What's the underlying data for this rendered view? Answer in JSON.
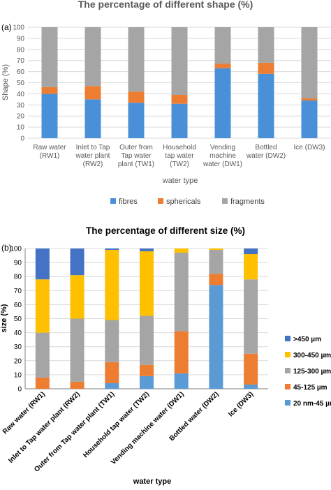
{
  "chart_data": [
    {
      "panel_label": "(a)",
      "type": "bar",
      "stacked": true,
      "title": "The percentage of different shape (%)",
      "xlabel": "water type",
      "ylabel": "Shape (%)",
      "ylim": [
        0,
        100
      ],
      "yticks": [
        0,
        10,
        20,
        30,
        40,
        50,
        60,
        70,
        80,
        90,
        100
      ],
      "grid": true,
      "legend_position": "bottom",
      "categories": [
        [
          "Raw water",
          "(RW1)"
        ],
        [
          "Inlet to Tap",
          "water plant",
          "(RW2)"
        ],
        [
          "Outer from",
          "Tap water",
          "plant (TW1)"
        ],
        [
          "Household",
          "tap water",
          "(TW2)"
        ],
        [
          "Vending",
          "machine",
          "water (DW1)"
        ],
        [
          "Bottled",
          "water (DW2)"
        ],
        [
          "Ice (DW3)"
        ]
      ],
      "series": [
        {
          "name": "fibres",
          "color": "#4a90d9",
          "values": [
            40,
            35,
            32,
            31,
            63,
            58,
            34
          ]
        },
        {
          "name": "sphericals",
          "color": "#ed7d31",
          "values": [
            6,
            12,
            10,
            8,
            4,
            10,
            2
          ]
        },
        {
          "name": "fragments",
          "color": "#a5a5a5",
          "values": [
            54,
            53,
            58,
            61,
            33,
            32,
            64
          ]
        }
      ]
    },
    {
      "panel_label": "(b)",
      "type": "bar",
      "stacked": true,
      "title": "The percentage of different size (%)",
      "xlabel": "water type",
      "ylabel": "size (%)",
      "ylim": [
        0,
        100
      ],
      "yticks": [
        0,
        10,
        20,
        30,
        40,
        50,
        60,
        70,
        80,
        90,
        100
      ],
      "grid": true,
      "legend_position": "right",
      "categories": [
        "Raw water (RW1)",
        "Inlet to Tap water plant (RW2)",
        "Outer from Tap water plant (TW1)",
        "Household tap water (TW2)",
        "Vending machine water (DW1)",
        "Bottled water (DW2)",
        "Ice (DW3)"
      ],
      "series": [
        {
          "name": "20 nm-45 µm",
          "color": "#5b9bd5",
          "values": [
            0,
            0,
            4,
            9,
            11,
            74,
            3
          ]
        },
        {
          "name": "45-125 µm",
          "color": "#ed7d31",
          "values": [
            8,
            5,
            15,
            8,
            30,
            8,
            22
          ]
        },
        {
          "name": "125-300 µm",
          "color": "#a5a5a5",
          "values": [
            32,
            45,
            30,
            35,
            56,
            17,
            53
          ]
        },
        {
          "name": "300-450 µm",
          "color": "#ffc000",
          "values": [
            38,
            31,
            50,
            46,
            3,
            1,
            18
          ]
        },
        {
          "name": ">450 µm",
          "color": "#4472c4",
          "values": [
            22,
            19,
            1,
            2,
            0,
            0,
            4
          ]
        }
      ]
    }
  ]
}
